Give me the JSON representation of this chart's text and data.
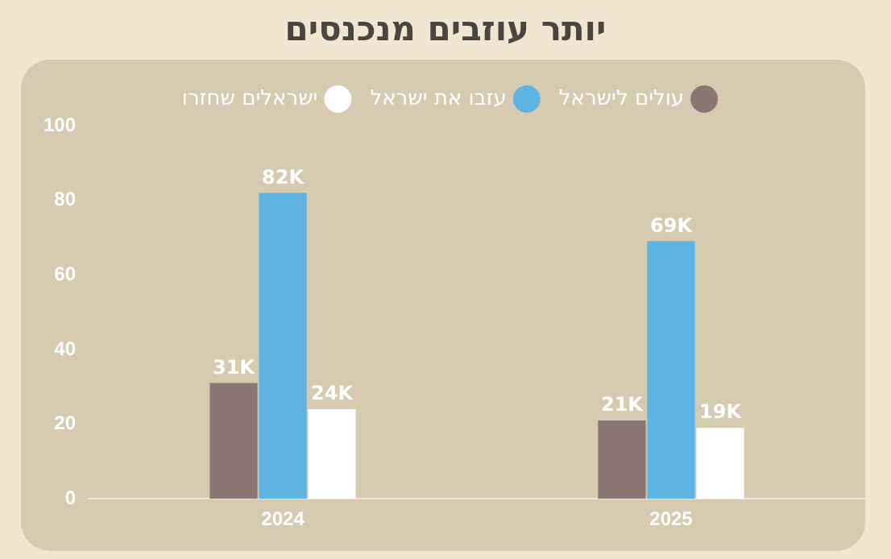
{
  "chart_data": {
    "type": "bar",
    "title": "יותר עוזבים מנכנסים",
    "categories": [
      "2024",
      "2025"
    ],
    "series": [
      {
        "name": "עולים לישראל",
        "color": "#8a7673",
        "values": [
          31,
          21
        ],
        "value_labels": [
          "31K",
          "21K"
        ]
      },
      {
        "name": "עזבו את ישראל",
        "color": "#5db4e3",
        "values": [
          82,
          69
        ],
        "value_labels": [
          "82K",
          "69K"
        ]
      },
      {
        "name": "ישראלים שחזרו",
        "color": "#ffffff",
        "values": [
          24,
          19
        ],
        "value_labels": [
          "24K",
          "19K"
        ]
      }
    ],
    "ylim": [
      0,
      100
    ],
    "yticks": [
      0,
      20,
      40,
      60,
      80,
      100
    ],
    "grid": false,
    "legend": "top"
  }
}
